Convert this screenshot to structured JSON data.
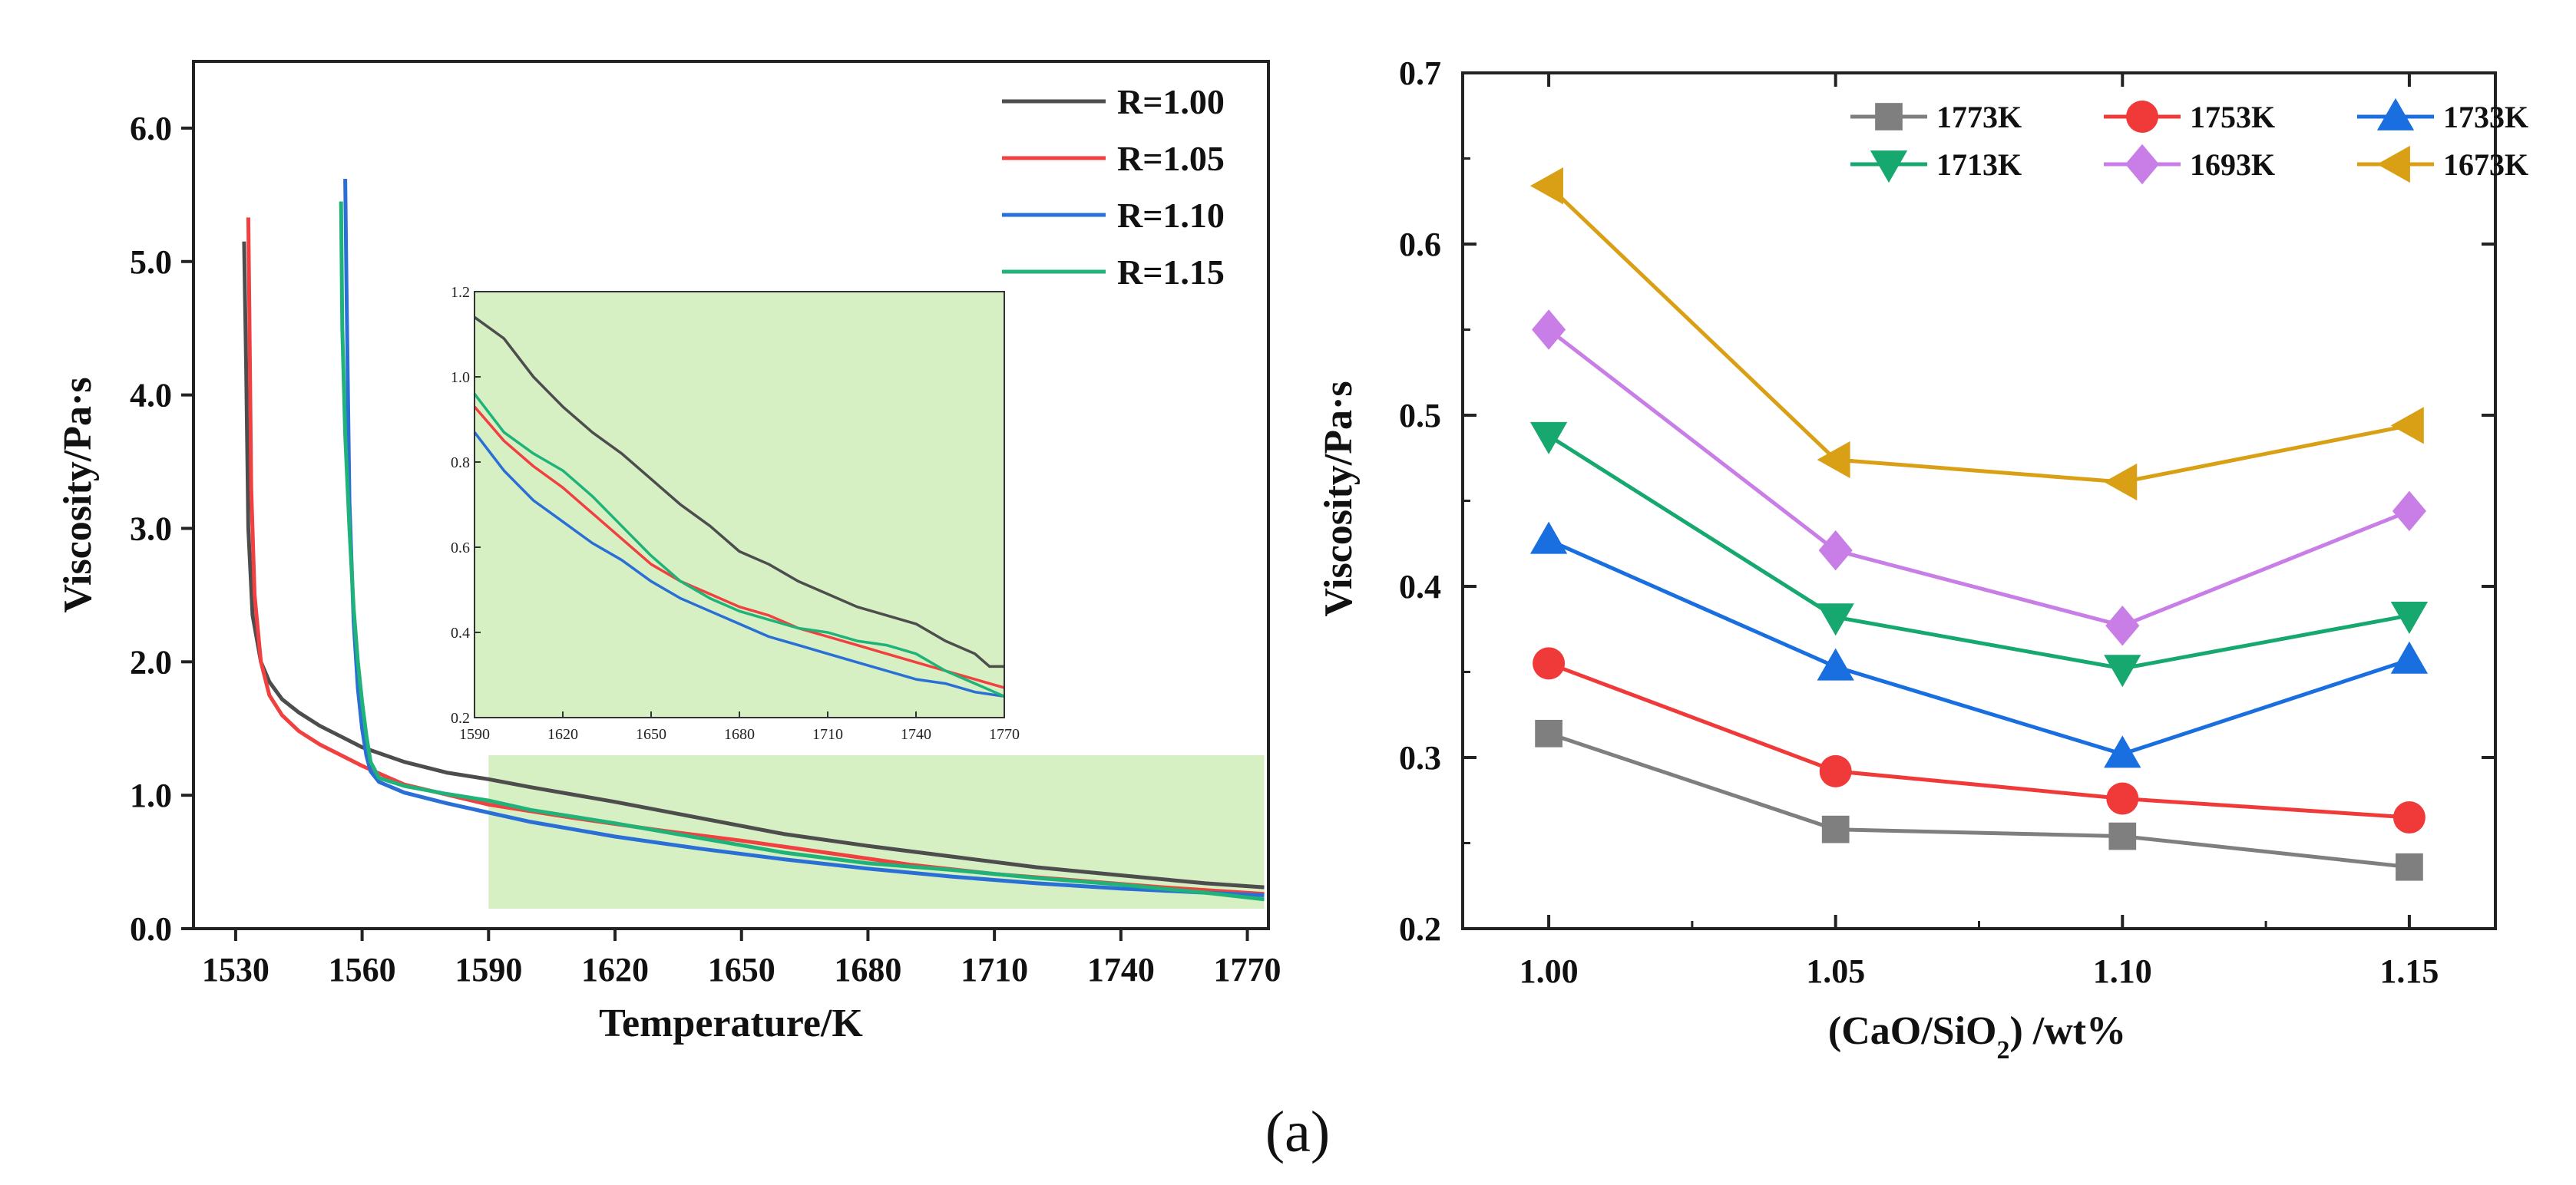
{
  "caption": "(a)",
  "chart_data": [
    {
      "type": "line",
      "title": "",
      "xlabel": "Temperature/K",
      "ylabel": "Viscosity/Pa·s",
      "xlim": [
        1520,
        1775
      ],
      "ylim": [
        0,
        6.5
      ],
      "xticks": [
        1530,
        1560,
        1590,
        1620,
        1650,
        1680,
        1710,
        1740,
        1770
      ],
      "yticks": [
        "0.0",
        "1.0",
        "2.0",
        "3.0",
        "4.0",
        "5.0",
        "6.0"
      ],
      "legend_position": "top-right",
      "highlight_region": {
        "x": [
          1590,
          1774
        ],
        "y": [
          0.15,
          1.3
        ],
        "color": "#d6f0c4"
      },
      "series": [
        {
          "name": "R=1.00",
          "color": "#4d4d4d",
          "x": [
            1532,
            1532.5,
            1533,
            1534,
            1536,
            1538,
            1541,
            1545,
            1550,
            1555,
            1560,
            1570,
            1580,
            1590,
            1600,
            1620,
            1640,
            1660,
            1680,
            1700,
            1720,
            1740,
            1760,
            1774
          ],
          "y": [
            5.15,
            4.2,
            3.0,
            2.35,
            2.0,
            1.85,
            1.72,
            1.62,
            1.52,
            1.44,
            1.36,
            1.25,
            1.17,
            1.12,
            1.06,
            0.95,
            0.83,
            0.71,
            0.62,
            0.54,
            0.46,
            0.4,
            0.34,
            0.31
          ]
        },
        {
          "name": "R=1.05",
          "color": "#f04040",
          "x": [
            1533,
            1533.3,
            1533.7,
            1534.5,
            1536,
            1538,
            1541,
            1545,
            1550,
            1555,
            1560,
            1565,
            1570,
            1590,
            1610,
            1630,
            1650,
            1670,
            1690,
            1710,
            1730,
            1750,
            1774
          ],
          "y": [
            5.33,
            4.5,
            3.3,
            2.5,
            2.0,
            1.75,
            1.6,
            1.48,
            1.38,
            1.3,
            1.22,
            1.15,
            1.08,
            0.93,
            0.83,
            0.74,
            0.66,
            0.57,
            0.48,
            0.41,
            0.36,
            0.31,
            0.26
          ]
        },
        {
          "name": "R=1.10",
          "color": "#2a6fd6",
          "x": [
            1556,
            1556.3,
            1557,
            1558,
            1559,
            1560,
            1561,
            1562,
            1564,
            1570,
            1580,
            1590,
            1600,
            1620,
            1640,
            1660,
            1680,
            1700,
            1720,
            1740,
            1760,
            1774
          ],
          "y": [
            5.62,
            4.8,
            3.2,
            2.3,
            1.8,
            1.5,
            1.3,
            1.18,
            1.1,
            1.02,
            0.94,
            0.87,
            0.8,
            0.69,
            0.6,
            0.52,
            0.45,
            0.39,
            0.34,
            0.3,
            0.27,
            0.25
          ]
        },
        {
          "name": "R=1.15",
          "color": "#1fb37a",
          "x": [
            1555,
            1555.3,
            1556,
            1557,
            1558,
            1559,
            1560,
            1561,
            1562,
            1564,
            1570,
            1580,
            1590,
            1600,
            1620,
            1640,
            1660,
            1680,
            1700,
            1720,
            1740,
            1760,
            1774
          ],
          "y": [
            5.45,
            4.5,
            3.7,
            3.0,
            2.4,
            2.0,
            1.7,
            1.45,
            1.25,
            1.13,
            1.07,
            1.01,
            0.96,
            0.89,
            0.79,
            0.68,
            0.57,
            0.49,
            0.44,
            0.38,
            0.33,
            0.27,
            0.22
          ]
        }
      ],
      "inset": {
        "xlim": [
          1590,
          1770
        ],
        "ylim": [
          0.2,
          1.2
        ],
        "xticks": [
          "1590",
          "1620",
          "1650",
          "1680",
          "1710",
          "1740",
          "1770"
        ],
        "yticks": [
          "0.2",
          "0.4",
          "0.6",
          "0.8",
          "1.0",
          "1.2"
        ],
        "series": [
          {
            "name": "R=1.00",
            "color": "#4d4d4d",
            "x": [
              1590,
              1600,
              1610,
              1620,
              1630,
              1640,
              1650,
              1660,
              1670,
              1680,
              1690,
              1700,
              1710,
              1720,
              1730,
              1740,
              1750,
              1760,
              1765,
              1770
            ],
            "y": [
              1.14,
              1.09,
              1.0,
              0.93,
              0.87,
              0.82,
              0.76,
              0.7,
              0.65,
              0.59,
              0.56,
              0.52,
              0.49,
              0.46,
              0.44,
              0.42,
              0.38,
              0.35,
              0.32,
              0.32
            ]
          },
          {
            "name": "R=1.05",
            "color": "#f04040",
            "x": [
              1590,
              1600,
              1610,
              1620,
              1630,
              1640,
              1650,
              1660,
              1670,
              1680,
              1690,
              1700,
              1710,
              1720,
              1730,
              1740,
              1750,
              1760,
              1770
            ],
            "y": [
              0.93,
              0.85,
              0.79,
              0.74,
              0.68,
              0.62,
              0.56,
              0.52,
              0.49,
              0.46,
              0.44,
              0.41,
              0.39,
              0.37,
              0.35,
              0.33,
              0.31,
              0.29,
              0.27
            ]
          },
          {
            "name": "R=1.10",
            "color": "#2a6fd6",
            "x": [
              1590,
              1600,
              1610,
              1620,
              1630,
              1640,
              1650,
              1660,
              1670,
              1680,
              1690,
              1700,
              1710,
              1720,
              1730,
              1740,
              1750,
              1760,
              1770
            ],
            "y": [
              0.87,
              0.78,
              0.71,
              0.66,
              0.61,
              0.57,
              0.52,
              0.48,
              0.45,
              0.42,
              0.39,
              0.37,
              0.35,
              0.33,
              0.31,
              0.29,
              0.28,
              0.26,
              0.25
            ]
          },
          {
            "name": "R=1.15",
            "color": "#1fb37a",
            "x": [
              1590,
              1600,
              1610,
              1620,
              1630,
              1640,
              1650,
              1660,
              1670,
              1680,
              1690,
              1700,
              1710,
              1720,
              1730,
              1740,
              1750,
              1760,
              1770
            ],
            "y": [
              0.96,
              0.87,
              0.82,
              0.78,
              0.72,
              0.65,
              0.58,
              0.52,
              0.48,
              0.45,
              0.43,
              0.41,
              0.4,
              0.38,
              0.37,
              0.35,
              0.31,
              0.28,
              0.25
            ]
          }
        ]
      }
    },
    {
      "type": "line",
      "title": "",
      "xlabel": "(CaO/SiO₂) /wt%",
      "xlabel_parts": [
        "(CaO/SiO",
        "2",
        ") /wt%"
      ],
      "ylabel": "Viscosity/Pa·s",
      "categories": [
        "1.00",
        "1.05",
        "1.10",
        "1.15"
      ],
      "x": [
        1.0,
        1.05,
        1.1,
        1.15
      ],
      "xlim": [
        0.985,
        1.165
      ],
      "ylim": [
        0.2,
        0.7
      ],
      "yticks": [
        "0.2",
        "0.3",
        "0.4",
        "0.5",
        "0.6",
        "0.7"
      ],
      "legend_position": "top-right",
      "series": [
        {
          "name": "1773K",
          "color": "#7f7f7f",
          "marker": "square",
          "values": [
            0.314,
            0.258,
            0.254,
            0.236
          ]
        },
        {
          "name": "1753K",
          "color": "#f03a3a",
          "marker": "circle",
          "values": [
            0.355,
            0.292,
            0.276,
            0.265
          ]
        },
        {
          "name": "1733K",
          "color": "#1a6fe0",
          "marker": "triangle-up",
          "values": [
            0.427,
            0.353,
            0.302,
            0.357
          ]
        },
        {
          "name": "1713K",
          "color": "#17a870",
          "marker": "triangle-down",
          "values": [
            0.488,
            0.382,
            0.352,
            0.383
          ]
        },
        {
          "name": "1693K",
          "color": "#c87ee6",
          "marker": "diamond",
          "values": [
            0.55,
            0.421,
            0.377,
            0.444
          ]
        },
        {
          "name": "1673K",
          "color": "#d9a015",
          "marker": "triangle-left",
          "values": [
            0.634,
            0.474,
            0.461,
            0.494
          ]
        }
      ]
    }
  ]
}
